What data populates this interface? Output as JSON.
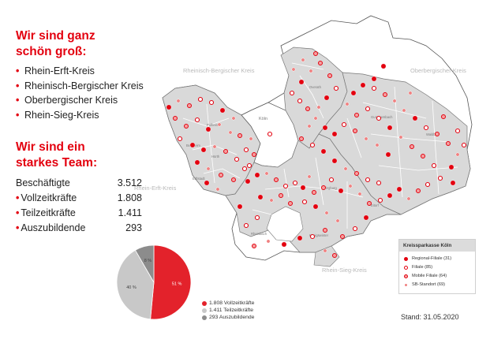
{
  "heading1": [
    "Wir sind ganz",
    "schön groß:"
  ],
  "regions": [
    "Rhein-Erft-Kreis",
    "Rheinisch-Bergischer Kreis",
    "Oberbergischer Kreis",
    "Rhein-Sieg-Kreis"
  ],
  "heading2": [
    "Wir sind ein",
    "starkes Team:"
  ],
  "team": [
    {
      "label": "Beschäftigte",
      "value": "3.512",
      "bullet": false
    },
    {
      "label": "Vollzeitkräfte",
      "value": "1.808",
      "bullet": true
    },
    {
      "label": "Teilzeitkräfte",
      "value": "1.411",
      "bullet": true
    },
    {
      "label": "Auszubildende",
      "value": "293",
      "bullet": true
    }
  ],
  "map_labels": {
    "rheinisch_bergischer": "Rheinisch-Bergischer Kreis",
    "oberbergischer": "Oberbergischer Kreis",
    "rhein_erft": "Rhein-Erft-Kreis",
    "rhein_sieg": "Rhein-Sieg-Kreis",
    "koeln": "Köln"
  },
  "legend": {
    "title": "Kreissparkasse Köln",
    "items": [
      {
        "label": "Regional-Filiale (31)",
        "marker": "regional"
      },
      {
        "label": "Filiale (85)",
        "marker": "filiale"
      },
      {
        "label": "Mobile Filiale (64)",
        "marker": "mobile"
      },
      {
        "label": "SB-Standort (69)",
        "marker": "sb"
      }
    ]
  },
  "chart_data": {
    "type": "pie",
    "slices": [
      {
        "name": "Vollzeitkräfte",
        "value": 1808,
        "pct_label": "51 %",
        "color": "#e3222b"
      },
      {
        "name": "Teilzeitkräfte",
        "value": 1411,
        "pct_label": "40 %",
        "color": "#c8c8c8"
      },
      {
        "name": "Auszubildende",
        "value": 293,
        "pct_label": "8 %",
        "color": "#8c8c8c"
      }
    ],
    "legend": [
      "1.808 Vollzeitkräfte",
      "1.411 Teilzeitkräfte",
      "293 Auszubildende"
    ]
  },
  "stand": "Stand: 31.05.2020",
  "colors": {
    "accent": "#e3000f",
    "region_fill": "#d9d9d9",
    "outline": "#555555"
  }
}
